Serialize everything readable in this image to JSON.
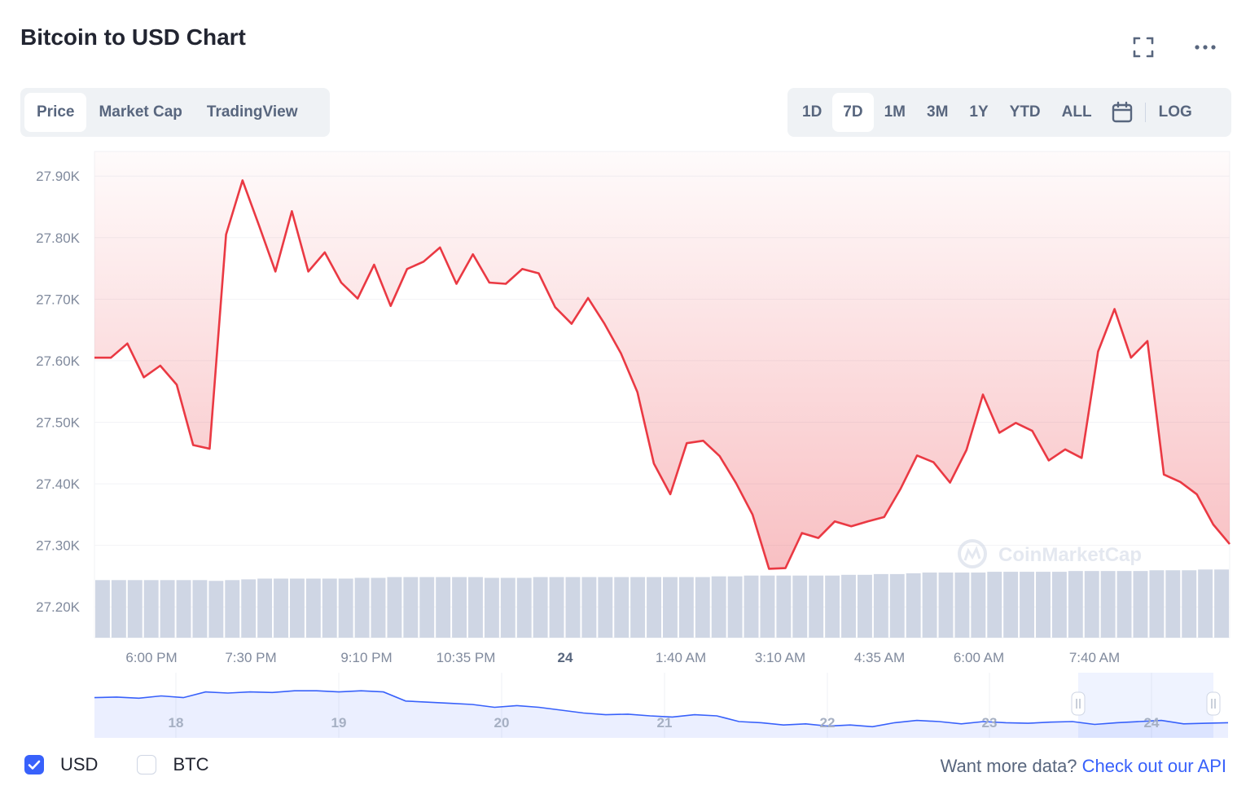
{
  "title": "Bitcoin to USD Chart",
  "icons": {
    "fullscreen": "fullscreen-icon",
    "more": "more-dots-icon",
    "calendar": "calendar-icon"
  },
  "view_tabs": [
    {
      "label": "Price",
      "active": true
    },
    {
      "label": "Market Cap",
      "active": false
    },
    {
      "label": "TradingView",
      "active": false
    }
  ],
  "range_tabs": [
    {
      "label": "1D",
      "active": false
    },
    {
      "label": "7D",
      "active": true
    },
    {
      "label": "1M",
      "active": false
    },
    {
      "label": "3M",
      "active": false
    },
    {
      "label": "1Y",
      "active": false
    },
    {
      "label": "YTD",
      "active": false
    },
    {
      "label": "ALL",
      "active": false
    }
  ],
  "log_label": "LOG",
  "watermark": "CoinMarketCap",
  "colors": {
    "line": "#ea3943",
    "accent": "#3861fb",
    "volume": "#cfd6e4",
    "navigator": "#3861fb"
  },
  "currencies": [
    {
      "label": "USD",
      "checked": true
    },
    {
      "label": "BTC",
      "checked": false
    }
  ],
  "footer": {
    "prompt": "Want more data?",
    "link": "Check out our API"
  },
  "chart_data": {
    "type": "line",
    "ylim": [
      27150,
      27940
    ],
    "y_ticks": [
      27200,
      27300,
      27400,
      27500,
      27600,
      27700,
      27800,
      27900
    ],
    "y_tick_labels": [
      "27.20K",
      "27.30K",
      "27.40K",
      "27.50K",
      "27.60K",
      "27.70K",
      "27.80K",
      "27.90K"
    ],
    "x_tick_labels": [
      "6:00 PM",
      "7:30 PM",
      "9:10 PM",
      "10:35 PM",
      "24",
      "1:40 AM",
      "3:10 AM",
      "4:35 AM",
      "6:00 AM",
      "7:40 AM"
    ],
    "x_tick_bold": [
      false,
      false,
      false,
      false,
      true,
      false,
      false,
      false,
      false,
      false
    ],
    "price": [
      27605,
      27605,
      27628,
      27573,
      27592,
      27561,
      27463,
      27457,
      27805,
      27893,
      27820,
      27745,
      27843,
      27745,
      27776,
      27727,
      27701,
      27756,
      27689,
      27749,
      27761,
      27784,
      27725,
      27773,
      27727,
      27725,
      27749,
      27742,
      27687,
      27660,
      27702,
      27660,
      27612,
      27549,
      27433,
      27383,
      27466,
      27470,
      27445,
      27401,
      27350,
      27262,
      27263,
      27320,
      27312,
      27339,
      27331,
      27339,
      27346,
      27392,
      27446,
      27435,
      27402,
      27455,
      27545,
      27483,
      27499,
      27486,
      27438,
      27456,
      27442,
      27615,
      27684,
      27605,
      27632,
      27415,
      27403,
      27383,
      27334,
      27302
    ],
    "volume_heights": [
      0.76,
      0.76,
      0.76,
      0.76,
      0.76,
      0.76,
      0.76,
      0.75,
      0.76,
      0.77,
      0.78,
      0.78,
      0.78,
      0.78,
      0.78,
      0.78,
      0.79,
      0.79,
      0.8,
      0.8,
      0.8,
      0.8,
      0.8,
      0.8,
      0.79,
      0.79,
      0.79,
      0.8,
      0.8,
      0.8,
      0.8,
      0.8,
      0.8,
      0.8,
      0.8,
      0.8,
      0.8,
      0.8,
      0.81,
      0.81,
      0.82,
      0.82,
      0.82,
      0.82,
      0.82,
      0.82,
      0.83,
      0.83,
      0.84,
      0.84,
      0.85,
      0.86,
      0.86,
      0.86,
      0.86,
      0.87,
      0.87,
      0.87,
      0.87,
      0.87,
      0.88,
      0.88,
      0.88,
      0.88,
      0.88,
      0.89,
      0.89,
      0.89,
      0.9,
      0.9
    ],
    "navigator_labels": [
      "18",
      "19",
      "20",
      "21",
      "22",
      "23",
      "24"
    ],
    "navigator_series": [
      0.62,
      0.63,
      0.61,
      0.65,
      0.62,
      0.72,
      0.7,
      0.72,
      0.71,
      0.74,
      0.74,
      0.72,
      0.74,
      0.72,
      0.56,
      0.54,
      0.52,
      0.5,
      0.45,
      0.48,
      0.45,
      0.4,
      0.35,
      0.32,
      0.33,
      0.3,
      0.28,
      0.32,
      0.3,
      0.2,
      0.18,
      0.14,
      0.16,
      0.12,
      0.14,
      0.11,
      0.18,
      0.22,
      0.2,
      0.16,
      0.2,
      0.18,
      0.17,
      0.19,
      0.2,
      0.15,
      0.18,
      0.2,
      0.22,
      0.16,
      0.17,
      0.18
    ],
    "navigator_selection": [
      0.875,
      1.0
    ]
  }
}
